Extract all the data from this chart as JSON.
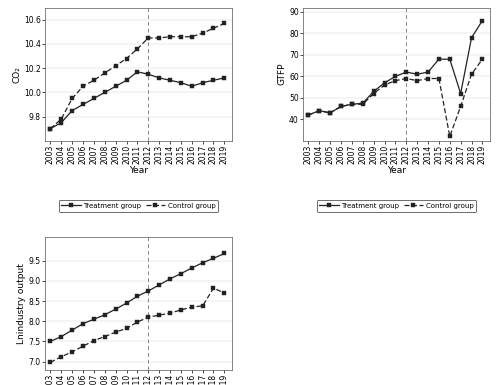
{
  "years": [
    2003,
    2004,
    2005,
    2006,
    2007,
    2008,
    2009,
    2010,
    2011,
    2012,
    2013,
    2014,
    2015,
    2016,
    2017,
    2018,
    2019
  ],
  "co2_treatment": [
    9.7,
    9.75,
    9.85,
    9.9,
    9.95,
    10.0,
    10.05,
    10.1,
    10.17,
    10.15,
    10.12,
    10.1,
    10.08,
    10.05,
    10.08,
    10.1,
    10.12
  ],
  "co2_control": [
    9.7,
    9.78,
    9.95,
    10.05,
    10.1,
    10.16,
    10.22,
    10.28,
    10.36,
    10.45,
    10.45,
    10.46,
    10.46,
    10.46,
    10.49,
    10.53,
    10.57
  ],
  "gtfp_treatment": [
    42,
    44,
    43,
    46,
    47,
    47.5,
    53,
    57,
    60,
    62,
    61,
    62,
    68,
    68,
    52,
    78,
    86
  ],
  "gtfp_control": [
    42,
    44,
    43,
    46,
    47,
    47,
    52,
    56,
    58,
    59,
    58,
    59,
    59,
    32,
    46,
    61,
    68
  ],
  "lnindustry_treatment": [
    7.5,
    7.62,
    7.78,
    7.94,
    8.05,
    8.16,
    8.3,
    8.45,
    8.62,
    8.75,
    8.9,
    9.05,
    9.18,
    9.32,
    9.45,
    9.56,
    9.68
  ],
  "lnindustry_control": [
    6.98,
    7.12,
    7.24,
    7.38,
    7.52,
    7.62,
    7.73,
    7.82,
    7.98,
    8.1,
    8.15,
    8.2,
    8.28,
    8.35,
    8.38,
    8.82,
    8.7
  ],
  "vline_year": 2012,
  "co2_ylabel": "CO₂",
  "gtfp_ylabel": "GTFP",
  "lnindustry_ylabel": "Lnindustry output",
  "xlabel": "Year",
  "co2_ylim": [
    9.6,
    10.7
  ],
  "co2_yticks": [
    9.8,
    10.0,
    10.2,
    10.4,
    10.6
  ],
  "gtfp_ylim": [
    30,
    92
  ],
  "gtfp_yticks": [
    40,
    50,
    60,
    70,
    80,
    90
  ],
  "lnindustry_ylim": [
    6.8,
    10.1
  ],
  "lnindustry_yticks": [
    7.0,
    7.5,
    8.0,
    8.5,
    9.0,
    9.5
  ],
  "line_color": "#222222",
  "marker": "s",
  "markersize": 3.5,
  "linewidth": 0.9,
  "legend_treatment": "Treatment group",
  "legend_control": "Control group",
  "bg_color": "#ffffff",
  "fontsize": 6.5
}
